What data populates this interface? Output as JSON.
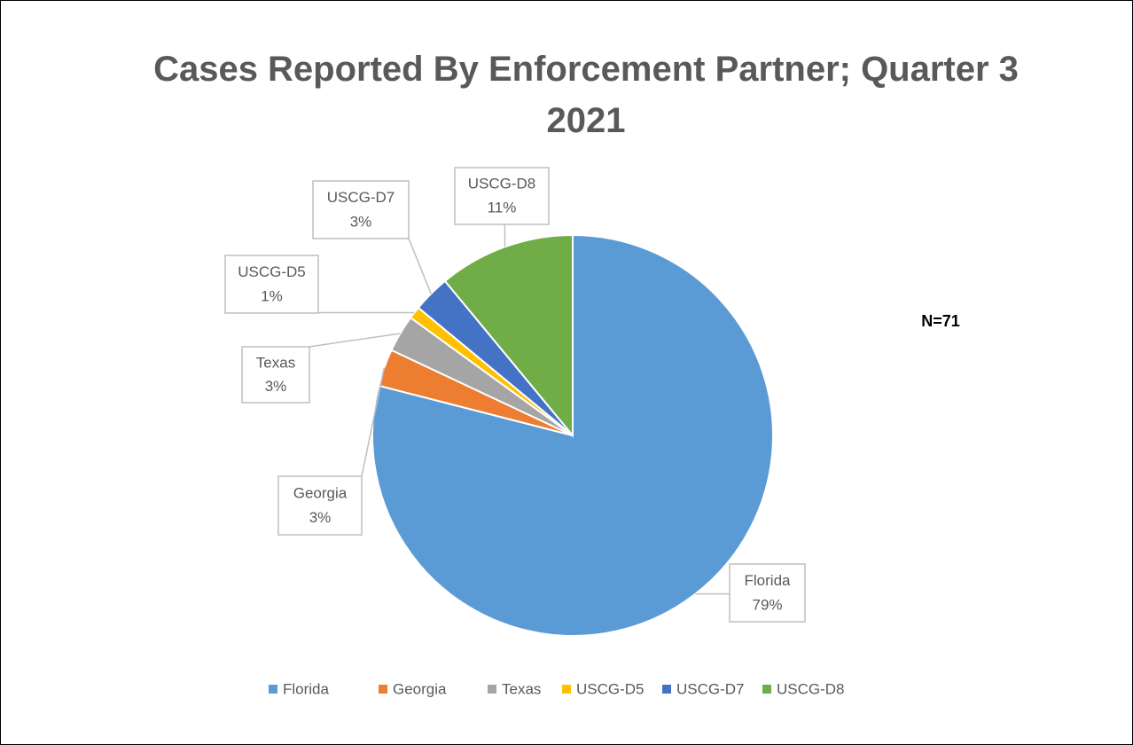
{
  "chart_data": {
    "type": "pie",
    "title": "Cases Reported By Enforcement Partner; Quarter 3 2021",
    "annotation": "N=71",
    "categories": [
      "Florida",
      "Georgia",
      "Texas",
      "USCG-D5",
      "USCG-D7",
      "USCG-D8"
    ],
    "values": [
      79,
      3,
      3,
      1,
      3,
      11
    ],
    "value_labels": [
      "79%",
      "3%",
      "3%",
      "1%",
      "3%",
      "11%"
    ],
    "colors": [
      "#5b9bd5",
      "#ed7d31",
      "#a5a5a5",
      "#ffc000",
      "#4472c4",
      "#70ad47"
    ],
    "legend": "bottom"
  }
}
